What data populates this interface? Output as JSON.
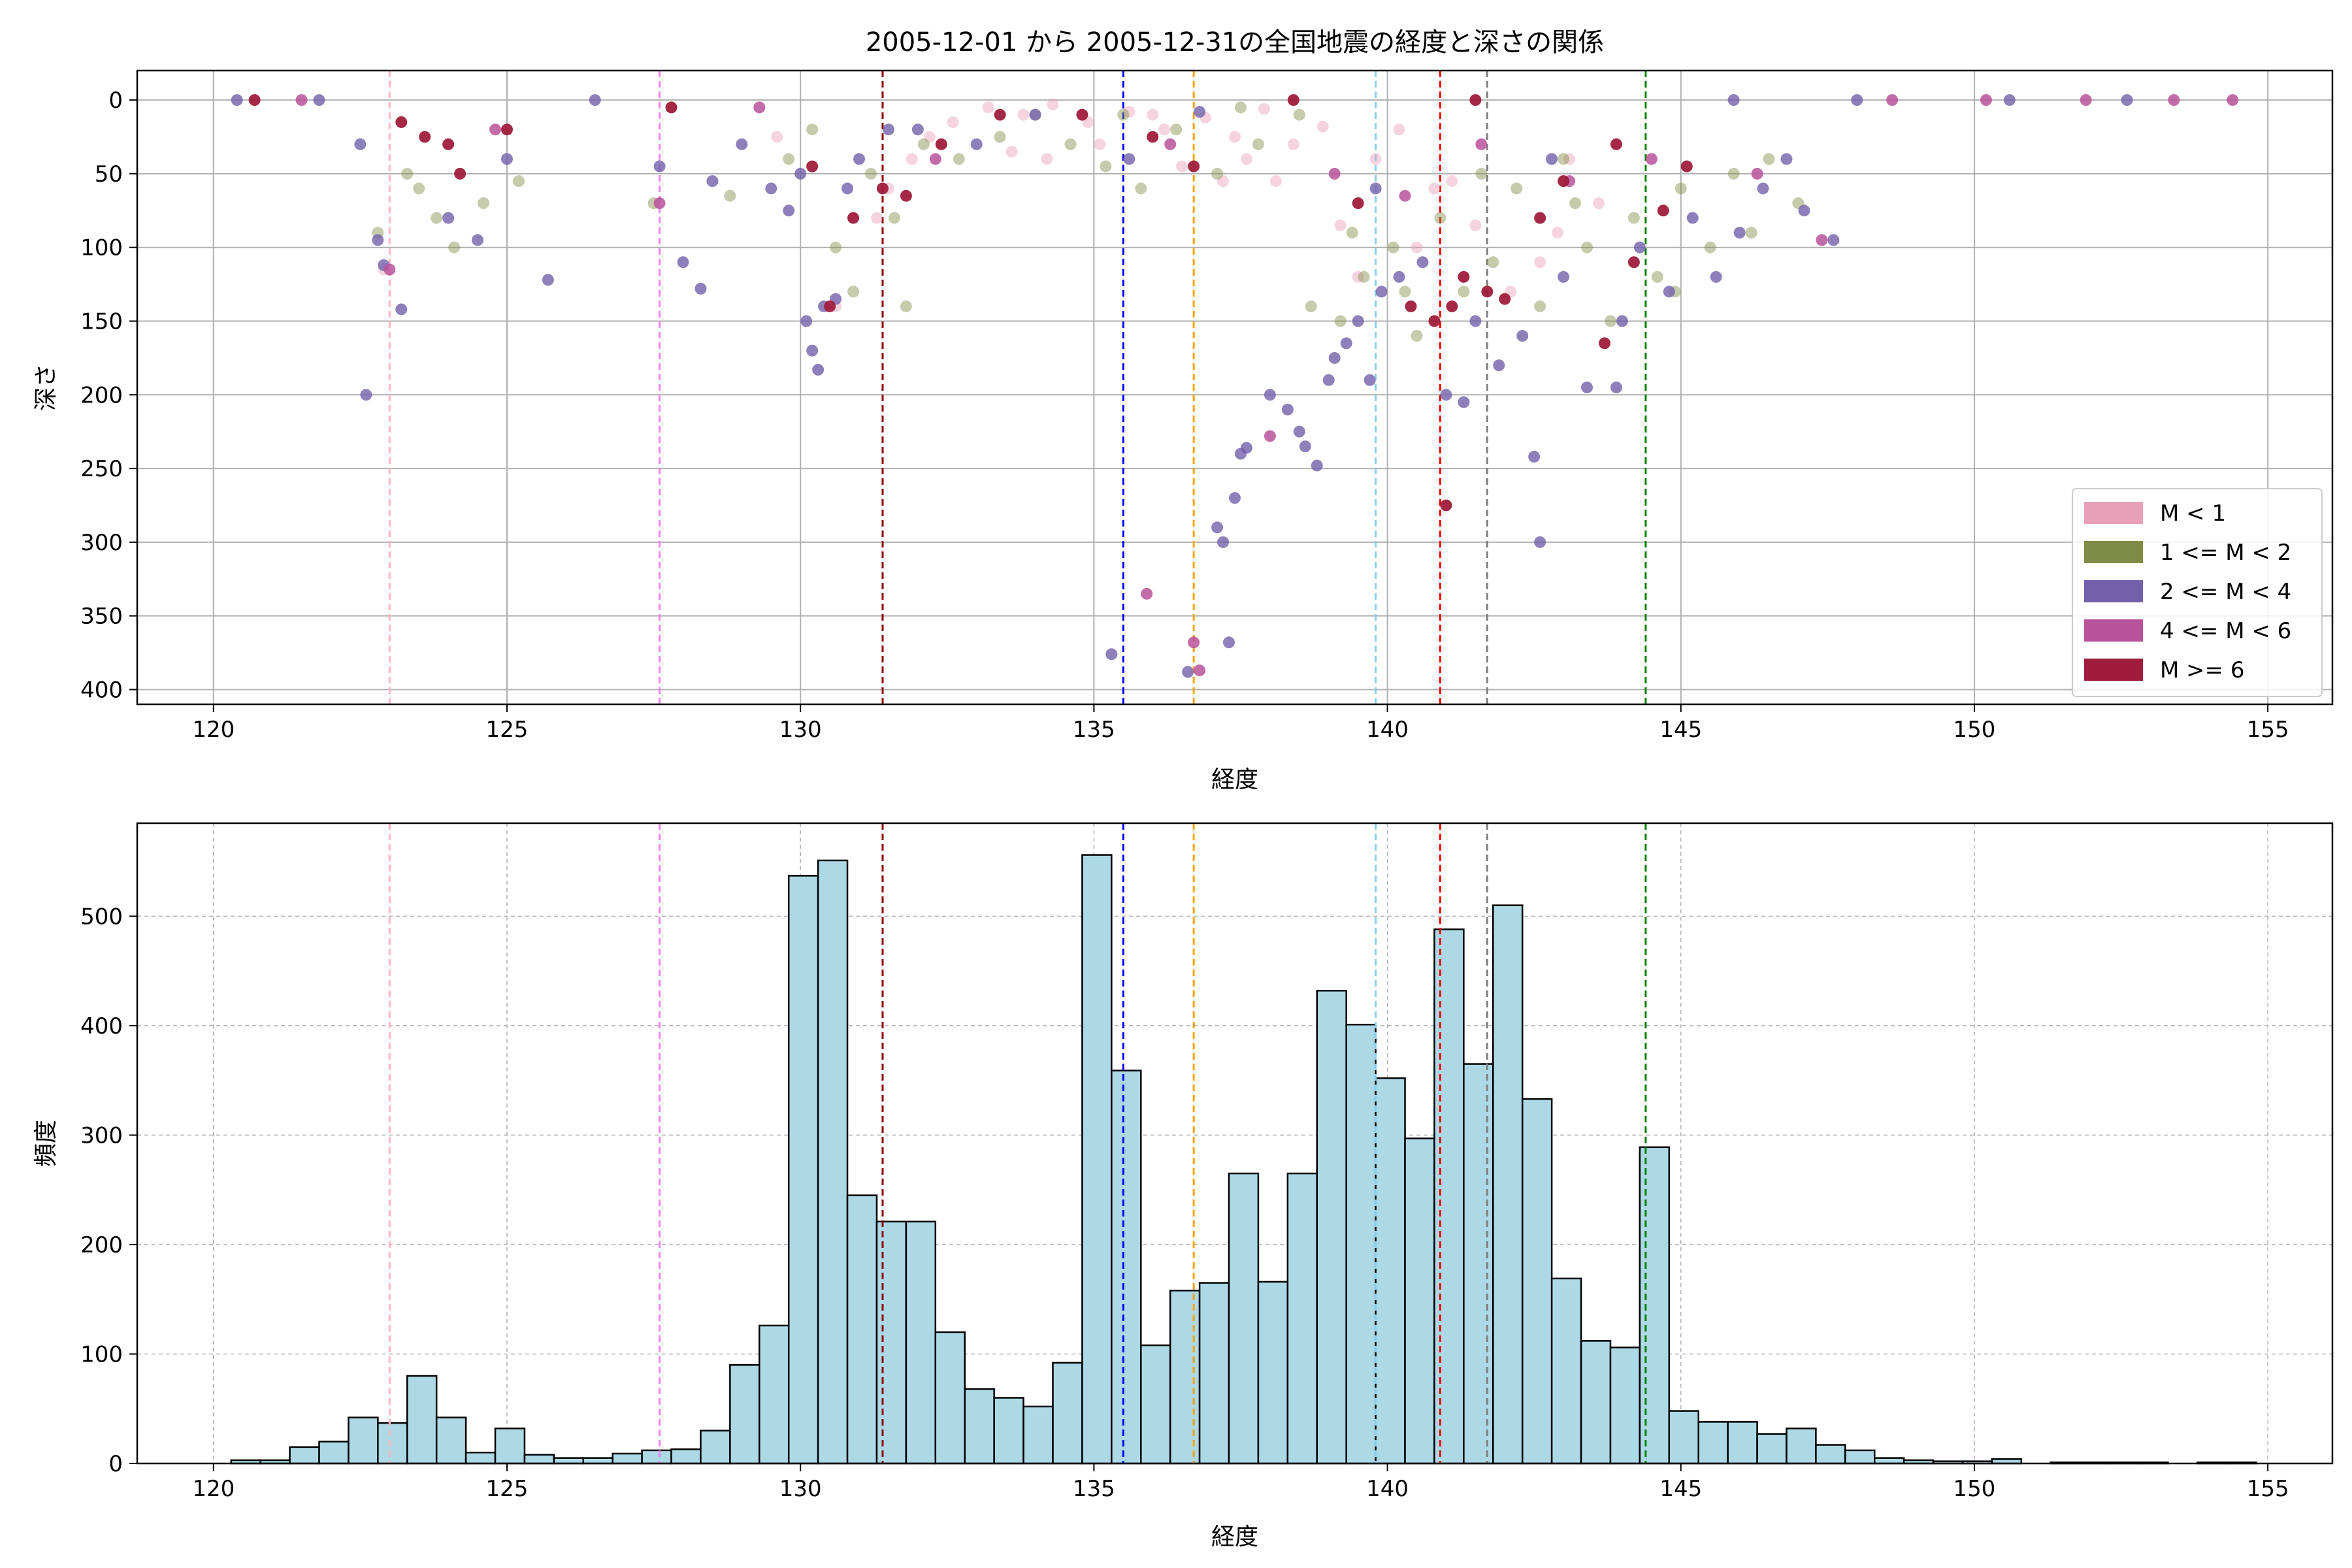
{
  "chart_data": [
    {
      "type": "scatter",
      "title": "2005-12-01 から 2005-12-31の全国地震の経度と深さの関係",
      "xlabel": "経度",
      "ylabel": "深さ",
      "xlim": [
        118.7,
        156.1
      ],
      "ylim": [
        410,
        -20
      ],
      "y_inverted": true,
      "xticks": [
        120,
        125,
        130,
        135,
        140,
        145,
        150,
        155
      ],
      "yticks": [
        0,
        50,
        100,
        150,
        200,
        250,
        300,
        350,
        400
      ],
      "grid": true,
      "legend_position": "lower-right",
      "series": [
        {
          "name": "M < 1",
          "color": "#e8a0b8",
          "alpha": 0.45,
          "points": [
            [
              133.2,
              5
            ],
            [
              133.8,
              10
            ],
            [
              134.3,
              3
            ],
            [
              134.9,
              15
            ],
            [
              135.6,
              8
            ],
            [
              136.2,
              20
            ],
            [
              136.9,
              12
            ],
            [
              137.4,
              25
            ],
            [
              137.9,
              6
            ],
            [
              138.4,
              30
            ],
            [
              138.9,
              18
            ],
            [
              136.5,
              45
            ],
            [
              137.2,
              55
            ],
            [
              132.6,
              15
            ],
            [
              131.9,
              40
            ],
            [
              131.3,
              80
            ],
            [
              139.5,
              120
            ],
            [
              140.5,
              100
            ],
            [
              141.5,
              85
            ],
            [
              142.6,
              110
            ],
            [
              143.6,
              70
            ],
            [
              140.8,
              60
            ],
            [
              142.1,
              130
            ],
            [
              139.2,
              85
            ],
            [
              141.1,
              55
            ],
            [
              143.1,
              40
            ],
            [
              130.6,
              140
            ],
            [
              138.1,
              55
            ],
            [
              135.1,
              30
            ],
            [
              134.2,
              40
            ],
            [
              129.6,
              25
            ],
            [
              131.5,
              60
            ],
            [
              136.0,
              10
            ],
            [
              137.6,
              40
            ],
            [
              140.2,
              20
            ],
            [
              133.6,
              35
            ],
            [
              132.2,
              25
            ],
            [
              139.8,
              40
            ],
            [
              142.9,
              90
            ],
            [
              122.9,
              115
            ]
          ]
        },
        {
          "name": "1 <= M < 2",
          "color": "#7f8c45",
          "alpha": 0.45,
          "points": [
            [
              123.5,
              60
            ],
            [
              123.8,
              80
            ],
            [
              124.1,
              100
            ],
            [
              123.3,
              50
            ],
            [
              124.6,
              70
            ],
            [
              122.8,
              90
            ],
            [
              125.2,
              55
            ],
            [
              127.5,
              70
            ],
            [
              128.8,
              65
            ],
            [
              129.8,
              40
            ],
            [
              130.2,
              20
            ],
            [
              130.6,
              100
            ],
            [
              130.9,
              130
            ],
            [
              131.2,
              50
            ],
            [
              131.6,
              80
            ],
            [
              132.1,
              30
            ],
            [
              132.7,
              40
            ],
            [
              133.4,
              25
            ],
            [
              134.0,
              10
            ],
            [
              134.6,
              30
            ],
            [
              135.2,
              45
            ],
            [
              135.8,
              60
            ],
            [
              136.4,
              20
            ],
            [
              137.1,
              50
            ],
            [
              137.8,
              30
            ],
            [
              138.5,
              10
            ],
            [
              139.2,
              150
            ],
            [
              139.6,
              120
            ],
            [
              140.1,
              100
            ],
            [
              140.5,
              160
            ],
            [
              140.9,
              80
            ],
            [
              141.3,
              130
            ],
            [
              141.8,
              110
            ],
            [
              142.2,
              60
            ],
            [
              142.6,
              140
            ],
            [
              143.0,
              40
            ],
            [
              143.4,
              100
            ],
            [
              143.8,
              150
            ],
            [
              144.2,
              80
            ],
            [
              144.6,
              120
            ],
            [
              145.0,
              60
            ],
            [
              145.5,
              100
            ],
            [
              145.9,
              50
            ],
            [
              146.5,
              40
            ],
            [
              147.0,
              70
            ],
            [
              146.2,
              90
            ],
            [
              144.9,
              130
            ],
            [
              143.2,
              70
            ],
            [
              141.6,
              50
            ],
            [
              140.3,
              130
            ],
            [
              139.4,
              90
            ],
            [
              138.7,
              140
            ],
            [
              137.5,
              5
            ],
            [
              135.5,
              10
            ],
            [
              131.8,
              140
            ]
          ]
        },
        {
          "name": "2 <= M < 4",
          "color": "#7260aa",
          "alpha": 0.8,
          "points": [
            [
              120.4,
              0
            ],
            [
              121.8,
              0
            ],
            [
              122.5,
              30
            ],
            [
              122.8,
              95
            ],
            [
              122.9,
              112
            ],
            [
              122.6,
              200
            ],
            [
              123.2,
              142
            ],
            [
              124.0,
              80
            ],
            [
              124.5,
              95
            ],
            [
              125.0,
              40
            ],
            [
              125.7,
              122
            ],
            [
              127.6,
              45
            ],
            [
              128.3,
              128
            ],
            [
              128.0,
              110
            ],
            [
              128.5,
              55
            ],
            [
              129.0,
              30
            ],
            [
              129.5,
              60
            ],
            [
              129.8,
              75
            ],
            [
              130.0,
              50
            ],
            [
              130.1,
              150
            ],
            [
              130.2,
              170
            ],
            [
              130.3,
              183
            ],
            [
              130.4,
              140
            ],
            [
              130.6,
              135
            ],
            [
              130.8,
              60
            ],
            [
              131.0,
              40
            ],
            [
              132.0,
              20
            ],
            [
              133.0,
              30
            ],
            [
              134.0,
              10
            ],
            [
              135.3,
              376
            ],
            [
              135.6,
              40
            ],
            [
              136.6,
              388
            ],
            [
              137.3,
              368
            ],
            [
              137.1,
              290
            ],
            [
              137.2,
              300
            ],
            [
              137.4,
              270
            ],
            [
              137.5,
              240
            ],
            [
              137.6,
              236
            ],
            [
              138.0,
              200
            ],
            [
              138.3,
              210
            ],
            [
              138.5,
              225
            ],
            [
              138.6,
              235
            ],
            [
              138.8,
              248
            ],
            [
              139.0,
              190
            ],
            [
              139.1,
              175
            ],
            [
              139.3,
              165
            ],
            [
              139.5,
              150
            ],
            [
              139.7,
              190
            ],
            [
              139.9,
              130
            ],
            [
              140.2,
              120
            ],
            [
              140.6,
              110
            ],
            [
              141.0,
              200
            ],
            [
              141.3,
              205
            ],
            [
              141.5,
              150
            ],
            [
              141.9,
              180
            ],
            [
              142.3,
              160
            ],
            [
              142.5,
              242
            ],
            [
              142.6,
              300
            ],
            [
              143.0,
              120
            ],
            [
              143.4,
              195
            ],
            [
              143.9,
              195
            ],
            [
              144.0,
              150
            ],
            [
              144.3,
              100
            ],
            [
              144.8,
              130
            ],
            [
              145.2,
              80
            ],
            [
              145.6,
              120
            ],
            [
              146.0,
              90
            ],
            [
              146.4,
              60
            ],
            [
              146.8,
              40
            ],
            [
              147.1,
              75
            ],
            [
              147.6,
              95
            ],
            [
              150.6,
              0
            ],
            [
              152.6,
              0
            ],
            [
              131.5,
              20
            ],
            [
              136.8,
              8
            ],
            [
              139.8,
              60
            ],
            [
              142.8,
              40
            ],
            [
              145.9,
              0
            ],
            [
              148.0,
              0
            ],
            [
              126.5,
              0
            ]
          ]
        },
        {
          "name": "4 <= M < 6",
          "color": "#b8529a",
          "alpha": 0.85,
          "points": [
            [
              121.5,
              0
            ],
            [
              123.0,
              115
            ],
            [
              124.8,
              20
            ],
            [
              127.6,
              70
            ],
            [
              129.3,
              5
            ],
            [
              132.3,
              40
            ],
            [
              135.9,
              335
            ],
            [
              136.7,
              368
            ],
            [
              136.8,
              387
            ],
            [
              138.0,
              228
            ],
            [
              139.1,
              50
            ],
            [
              140.3,
              65
            ],
            [
              141.6,
              30
            ],
            [
              143.1,
              55
            ],
            [
              144.5,
              40
            ],
            [
              146.3,
              50
            ],
            [
              147.4,
              95
            ],
            [
              148.6,
              0
            ],
            [
              150.2,
              0
            ],
            [
              151.9,
              0
            ],
            [
              153.4,
              0
            ],
            [
              154.4,
              0
            ],
            [
              136.3,
              30
            ]
          ]
        },
        {
          "name": "M >= 6",
          "color": "#a01c3c",
          "alpha": 0.95,
          "points": [
            [
              120.7,
              0
            ],
            [
              123.2,
              15
            ],
            [
              123.6,
              25
            ],
            [
              124.0,
              30
            ],
            [
              124.2,
              50
            ],
            [
              125.0,
              20
            ],
            [
              127.8,
              5
            ],
            [
              130.2,
              45
            ],
            [
              130.5,
              140
            ],
            [
              130.9,
              80
            ],
            [
              131.4,
              60
            ],
            [
              131.8,
              65
            ],
            [
              132.4,
              30
            ],
            [
              134.8,
              10
            ],
            [
              136.0,
              25
            ],
            [
              136.7,
              45
            ],
            [
              139.5,
              70
            ],
            [
              140.4,
              140
            ],
            [
              140.8,
              150
            ],
            [
              141.1,
              140
            ],
            [
              141.3,
              120
            ],
            [
              141.7,
              130
            ],
            [
              142.0,
              135
            ],
            [
              141.0,
              275
            ],
            [
              142.6,
              80
            ],
            [
              143.0,
              55
            ],
            [
              143.7,
              165
            ],
            [
              144.2,
              110
            ],
            [
              144.7,
              75
            ],
            [
              145.1,
              45
            ],
            [
              133.4,
              10
            ],
            [
              138.4,
              0
            ],
            [
              141.5,
              0
            ],
            [
              143.9,
              30
            ]
          ]
        }
      ],
      "reference_lines": [
        {
          "x": 123.0,
          "color": "#ffb6c1"
        },
        {
          "x": 127.6,
          "color": "#ee82ee"
        },
        {
          "x": 131.4,
          "color": "#8b0000"
        },
        {
          "x": 135.5,
          "color": "#0000ff"
        },
        {
          "x": 136.7,
          "color": "#ffa500"
        },
        {
          "x": 139.8,
          "color": "#87ceeb"
        },
        {
          "x": 140.9,
          "color": "#ff0000"
        },
        {
          "x": 141.7,
          "color": "#808080"
        },
        {
          "x": 144.4,
          "color": "#008000"
        }
      ]
    },
    {
      "type": "bar",
      "title": "",
      "xlabel": "経度",
      "ylabel": "頻度",
      "xlim": [
        118.7,
        156.1
      ],
      "ylim": [
        0,
        585
      ],
      "xticks": [
        120,
        125,
        130,
        135,
        140,
        145,
        150,
        155
      ],
      "yticks": [
        0,
        100,
        200,
        300,
        400,
        500
      ],
      "grid": true,
      "bar_color": "#add8e6",
      "bin_start": 120.3,
      "bin_width": 0.5,
      "values": [
        3,
        3,
        15,
        20,
        42,
        37,
        80,
        42,
        10,
        32,
        8,
        5,
        5,
        9,
        12,
        13,
        30,
        90,
        126,
        537,
        551,
        245,
        221,
        221,
        120,
        68,
        60,
        52,
        92,
        556,
        359,
        108,
        158,
        165,
        265,
        166,
        265,
        432,
        401,
        352,
        297,
        488,
        365,
        510,
        333,
        169,
        112,
        106,
        289,
        48,
        38,
        38,
        27,
        32,
        17,
        12,
        5,
        3,
        2,
        2,
        4,
        0,
        1,
        1,
        1,
        1,
        0,
        1,
        1
      ],
      "reference_lines": [
        {
          "x": 123.0,
          "color": "#ffb6c1"
        },
        {
          "x": 127.6,
          "color": "#ee82ee"
        },
        {
          "x": 131.4,
          "color": "#8b0000"
        },
        {
          "x": 135.5,
          "color": "#0000ff"
        },
        {
          "x": 136.7,
          "color": "#ffa500"
        },
        {
          "x": 139.8,
          "color": "#87ceeb"
        },
        {
          "x": 140.9,
          "color": "#ff0000"
        },
        {
          "x": 141.7,
          "color": "#808080"
        },
        {
          "x": 144.4,
          "color": "#008000"
        }
      ]
    }
  ]
}
